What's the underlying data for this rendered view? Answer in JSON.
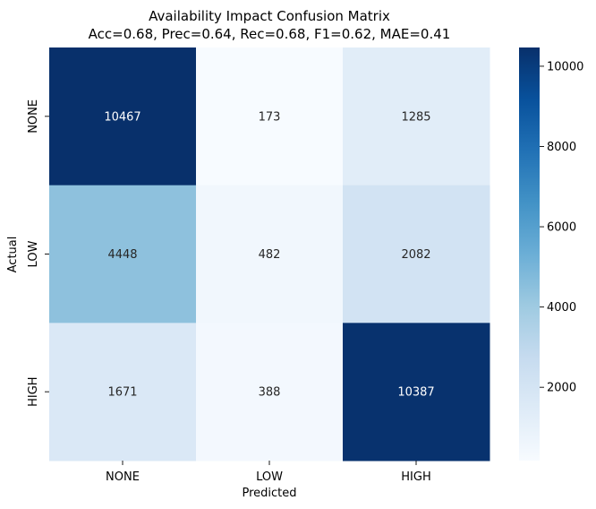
{
  "chart_data": {
    "type": "heatmap",
    "title": "Availability Impact Confusion Matrix",
    "subtitle": "Acc=0.68, Prec=0.64, Rec=0.68, F1=0.62, MAE=0.41",
    "xlabel": "Predicted",
    "ylabel": "Actual",
    "x_categories": [
      "NONE",
      "LOW",
      "HIGH"
    ],
    "y_categories": [
      "NONE",
      "LOW",
      "HIGH"
    ],
    "values": [
      [
        10467,
        173,
        1285
      ],
      [
        4448,
        482,
        2082
      ],
      [
        1671,
        388,
        10387
      ]
    ],
    "colorbar": {
      "min": 173,
      "max": 10467,
      "ticks": [
        2000,
        4000,
        6000,
        8000,
        10000
      ],
      "colormap": "Blues"
    }
  }
}
